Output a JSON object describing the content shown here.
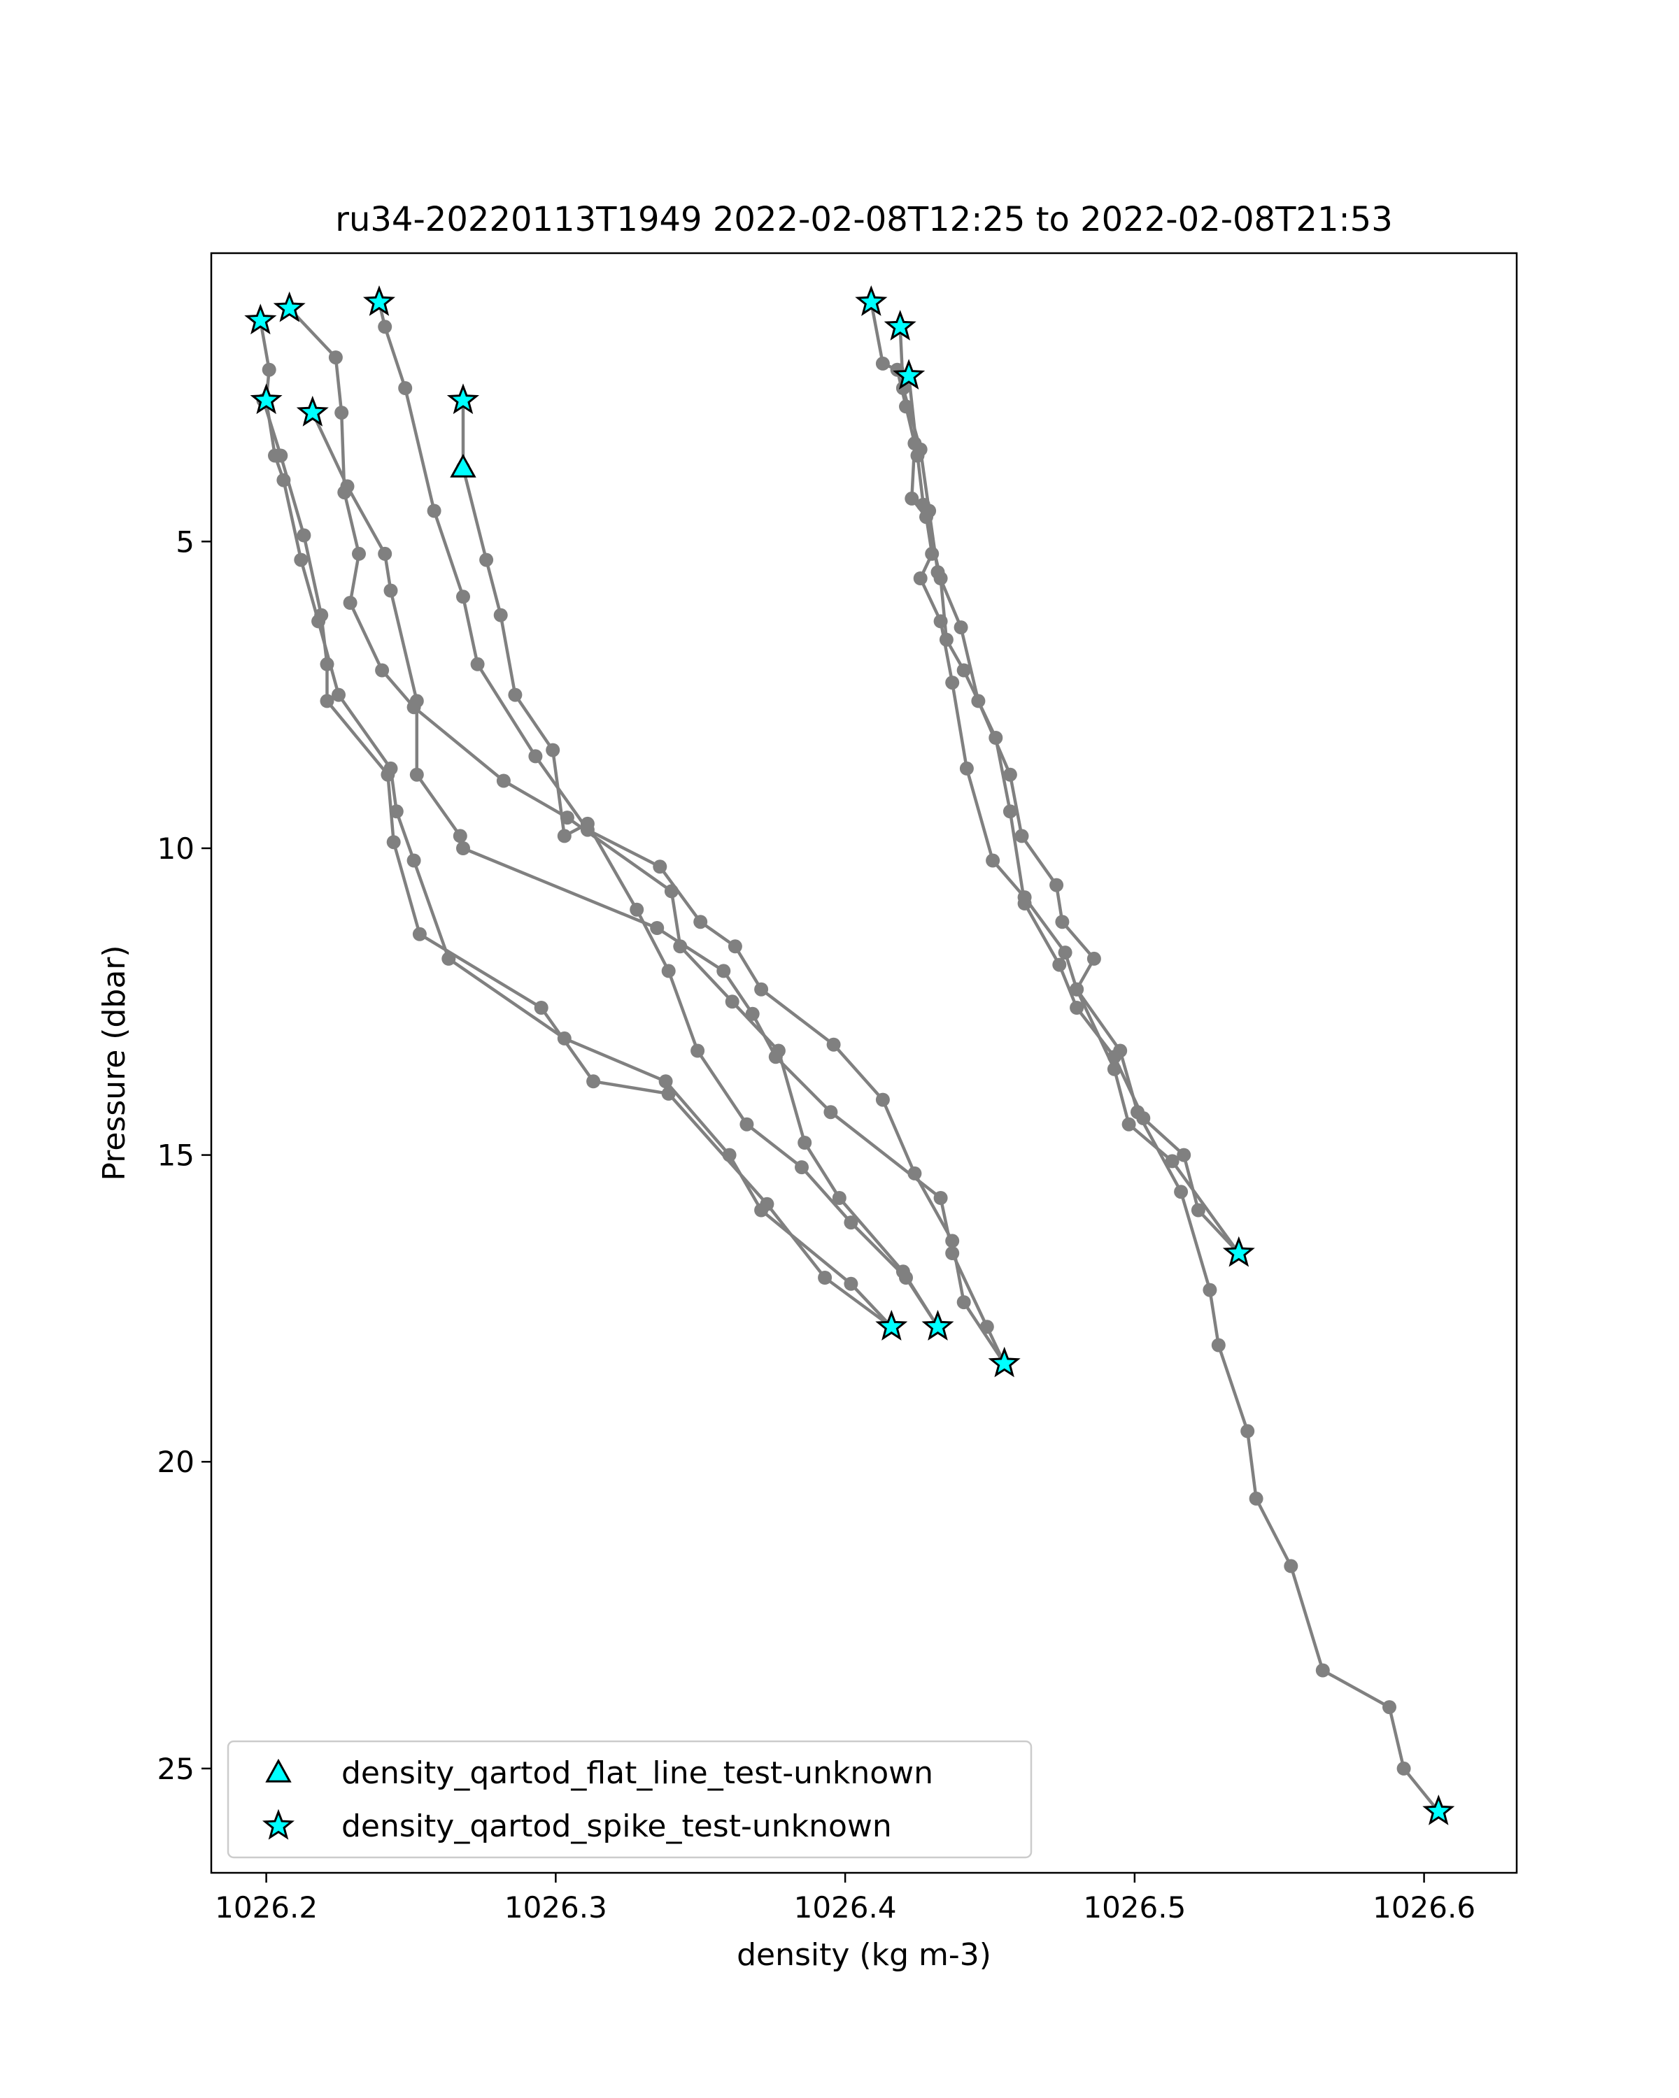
{
  "chart_data": {
    "type": "line",
    "title": "ru34-20220113T1949 2022-02-08T12:25 to 2022-02-08T21:53",
    "xlabel": "density (kg m-3)",
    "ylabel": "Pressure (dbar)",
    "xlim": [
      1026.181,
      1026.632
    ],
    "ylim": [
      26.7,
      0.3
    ],
    "y_inverted": true,
    "xticks": [
      1026.2,
      1026.3,
      1026.4,
      1026.5,
      1026.6
    ],
    "xtick_labels": [
      "1026.2",
      "1026.3",
      "1026.4",
      "1026.5",
      "1026.6"
    ],
    "yticks": [
      5,
      10,
      15,
      20,
      25
    ],
    "ytick_labels": [
      "5",
      "10",
      "15",
      "20",
      "25"
    ],
    "grid": false,
    "line_color": "#808080",
    "marker_color": "#00ffff",
    "legend_position": "lower-left",
    "series": [
      {
        "points": [
          [
            1026.198,
            1.4
          ],
          [
            1026.201,
            2.2
          ],
          [
            1026.2,
            2.7
          ],
          [
            1026.203,
            3.6
          ],
          [
            1026.206,
            4.0
          ],
          [
            1026.212,
            5.3
          ],
          [
            1026.218,
            6.3
          ],
          [
            1026.225,
            7.5
          ],
          [
            1026.243,
            8.7
          ],
          [
            1026.245,
            9.4
          ],
          [
            1026.251,
            10.2
          ],
          [
            1026.263,
            11.8
          ],
          [
            1026.303,
            13.1
          ],
          [
            1026.338,
            13.8
          ],
          [
            1026.36,
            15.0
          ],
          [
            1026.371,
            15.9
          ],
          [
            1026.402,
            17.1
          ],
          [
            1026.416,
            17.8
          ]
        ]
      },
      {
        "points": [
          [
            1026.208,
            1.2
          ],
          [
            1026.224,
            2.0
          ],
          [
            1026.226,
            2.9
          ],
          [
            1026.227,
            4.2
          ],
          [
            1026.232,
            5.2
          ],
          [
            1026.229,
            6.0
          ],
          [
            1026.24,
            7.1
          ],
          [
            1026.251,
            7.7
          ],
          [
            1026.282,
            8.9
          ],
          [
            1026.304,
            9.5
          ],
          [
            1026.34,
            10.7
          ],
          [
            1026.343,
            11.6
          ],
          [
            1026.361,
            12.5
          ],
          [
            1026.377,
            13.3
          ],
          [
            1026.386,
            14.8
          ],
          [
            1026.398,
            15.7
          ],
          [
            1026.42,
            16.9
          ],
          [
            1026.432,
            17.8
          ]
        ]
      },
      {
        "points": [
          [
            1026.199,
            2.7
          ],
          [
            1026.205,
            3.6
          ],
          [
            1026.213,
            4.9
          ],
          [
            1026.219,
            6.2
          ],
          [
            1026.221,
            7.0
          ],
          [
            1026.221,
            7.6
          ],
          [
            1026.242,
            8.8
          ],
          [
            1026.244,
            9.9
          ],
          [
            1026.253,
            11.4
          ],
          [
            1026.295,
            12.6
          ],
          [
            1026.313,
            13.8
          ],
          [
            1026.339,
            14.0
          ],
          [
            1026.373,
            15.8
          ],
          [
            1026.393,
            17.0
          ],
          [
            1026.416,
            17.8
          ]
        ]
      },
      {
        "points": [
          [
            1026.216,
            2.9
          ],
          [
            1026.228,
            4.1
          ],
          [
            1026.241,
            5.2
          ],
          [
            1026.243,
            5.8
          ],
          [
            1026.252,
            7.6
          ],
          [
            1026.252,
            8.8
          ],
          [
            1026.267,
            9.8
          ],
          [
            1026.268,
            10.0
          ],
          [
            1026.335,
            11.3
          ],
          [
            1026.358,
            12.0
          ],
          [
            1026.368,
            12.7
          ],
          [
            1026.376,
            13.4
          ],
          [
            1026.395,
            14.3
          ],
          [
            1026.433,
            15.7
          ],
          [
            1026.437,
            16.6
          ],
          [
            1026.449,
            17.8
          ],
          [
            1026.455,
            18.4
          ]
        ]
      },
      {
        "points": [
          [
            1026.239,
            1.1
          ],
          [
            1026.241,
            1.5
          ],
          [
            1026.248,
            2.5
          ],
          [
            1026.258,
            4.5
          ],
          [
            1026.268,
            5.9
          ],
          [
            1026.273,
            7.0
          ],
          [
            1026.293,
            8.5
          ],
          [
            1026.311,
            9.7
          ],
          [
            1026.336,
            10.3
          ],
          [
            1026.35,
            11.2
          ],
          [
            1026.362,
            11.6
          ],
          [
            1026.371,
            12.3
          ],
          [
            1026.396,
            13.2
          ],
          [
            1026.413,
            14.1
          ],
          [
            1026.424,
            15.3
          ],
          [
            1026.437,
            16.4
          ],
          [
            1026.441,
            17.4
          ],
          [
            1026.455,
            18.4
          ]
        ]
      },
      {
        "points": [
          [
            1026.268,
            2.7
          ],
          [
            1026.268,
            3.8
          ],
          [
            1026.276,
            5.3
          ],
          [
            1026.281,
            6.2
          ],
          [
            1026.286,
            7.5
          ],
          [
            1026.299,
            8.4
          ],
          [
            1026.303,
            9.8
          ],
          [
            1026.311,
            9.6
          ],
          [
            1026.328,
            11.0
          ],
          [
            1026.339,
            12.0
          ],
          [
            1026.349,
            13.3
          ],
          [
            1026.366,
            14.5
          ],
          [
            1026.385,
            15.2
          ],
          [
            1026.402,
            16.1
          ],
          [
            1026.421,
            17.0
          ],
          [
            1026.432,
            17.8
          ]
        ]
      },
      {
        "points": [
          [
            1026.409,
            1.1
          ],
          [
            1026.413,
            2.1
          ],
          [
            1026.418,
            2.2
          ],
          [
            1026.421,
            2.8
          ],
          [
            1026.424,
            3.4
          ],
          [
            1026.423,
            4.3
          ],
          [
            1026.428,
            4.6
          ],
          [
            1026.43,
            5.2
          ],
          [
            1026.426,
            5.6
          ],
          [
            1026.433,
            6.3
          ],
          [
            1026.437,
            7.3
          ],
          [
            1026.442,
            8.7
          ],
          [
            1026.451,
            10.2
          ],
          [
            1026.462,
            10.8
          ],
          [
            1026.476,
            11.7
          ],
          [
            1026.48,
            12.3
          ],
          [
            1026.493,
            13.6
          ],
          [
            1026.498,
            14.5
          ],
          [
            1026.513,
            15.1
          ],
          [
            1026.536,
            16.6
          ]
        ]
      },
      {
        "points": [
          [
            1026.419,
            1.5
          ],
          [
            1026.42,
            2.5
          ],
          [
            1026.426,
            3.5
          ],
          [
            1026.429,
            4.5
          ],
          [
            1026.432,
            5.5
          ],
          [
            1026.44,
            6.4
          ],
          [
            1026.446,
            7.6
          ],
          [
            1026.457,
            8.8
          ],
          [
            1026.461,
            9.8
          ],
          [
            1026.473,
            10.6
          ],
          [
            1026.475,
            11.2
          ],
          [
            1026.486,
            11.8
          ],
          [
            1026.48,
            12.3
          ],
          [
            1026.495,
            13.3
          ],
          [
            1026.501,
            14.3
          ],
          [
            1026.516,
            15.6
          ],
          [
            1026.526,
            17.2
          ],
          [
            1026.529,
            18.1
          ],
          [
            1026.539,
            19.5
          ],
          [
            1026.542,
            20.6
          ],
          [
            1026.554,
            21.7
          ],
          [
            1026.565,
            23.4
          ],
          [
            1026.588,
            24.0
          ],
          [
            1026.593,
            25.0
          ],
          [
            1026.605,
            25.7
          ]
        ]
      },
      {
        "points": [
          [
            1026.422,
            2.3
          ],
          [
            1026.425,
            3.6
          ],
          [
            1026.427,
            4.4
          ],
          [
            1026.433,
            5.6
          ],
          [
            1026.435,
            6.6
          ],
          [
            1026.441,
            7.1
          ],
          [
            1026.452,
            8.2
          ],
          [
            1026.457,
            9.4
          ],
          [
            1026.462,
            10.9
          ],
          [
            1026.474,
            11.9
          ],
          [
            1026.48,
            12.6
          ],
          [
            1026.493,
            13.4
          ],
          [
            1026.503,
            14.4
          ],
          [
            1026.517,
            15.0
          ],
          [
            1026.522,
            15.9
          ],
          [
            1026.536,
            16.6
          ]
        ]
      }
    ],
    "flat_line_markers": [
      [
        1026.268,
        3.8
      ]
    ],
    "spike_markers": [
      [
        1026.198,
        1.4
      ],
      [
        1026.208,
        1.2
      ],
      [
        1026.239,
        1.1
      ],
      [
        1026.2,
        2.7
      ],
      [
        1026.216,
        2.9
      ],
      [
        1026.268,
        2.7
      ],
      [
        1026.409,
        1.1
      ],
      [
        1026.419,
        1.5
      ],
      [
        1026.422,
        2.3
      ],
      [
        1026.416,
        17.8
      ],
      [
        1026.432,
        17.8
      ],
      [
        1026.455,
        18.4
      ],
      [
        1026.536,
        16.6
      ],
      [
        1026.605,
        25.7
      ]
    ],
    "legend": [
      {
        "label": "density_qartod_flat_line_test-unknown",
        "marker": "triangle"
      },
      {
        "label": "density_qartod_spike_test-unknown",
        "marker": "star"
      }
    ]
  }
}
